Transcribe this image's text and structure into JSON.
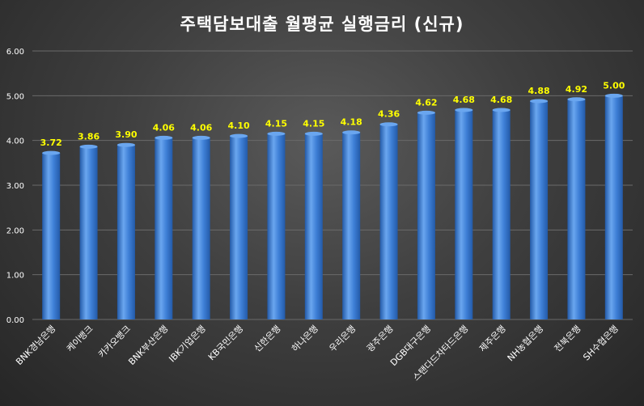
{
  "chart_data": {
    "type": "bar",
    "title": "주택담보대출 월평균 실행금리 (신규)",
    "categories": [
      "BNK경남은행",
      "케이뱅크",
      "카카오뱅크",
      "BNK부산은행",
      "IBK기업은행",
      "KB국민은행",
      "신한은행",
      "하나은행",
      "우리은행",
      "광주은행",
      "DGB대구은행",
      "스탠다드차타드은행",
      "제주은행",
      "NH농협은행",
      "전북은행",
      "SH수협은행"
    ],
    "values": [
      3.72,
      3.86,
      3.9,
      4.06,
      4.06,
      4.1,
      4.15,
      4.15,
      4.18,
      4.36,
      4.62,
      4.68,
      4.68,
      4.88,
      4.92,
      5.0
    ],
    "value_labels": [
      "3.72",
      "3.86",
      "3.90",
      "4.06",
      "4.06",
      "4.10",
      "4.15",
      "4.15",
      "4.18",
      "4.36",
      "4.62",
      "4.68",
      "4.68",
      "4.88",
      "4.92",
      "5.00"
    ],
    "ylim": [
      0,
      6
    ],
    "yticks": [
      0,
      1,
      2,
      3,
      4,
      5,
      6
    ],
    "ytick_labels": [
      "0.00",
      "1.00",
      "2.00",
      "3.00",
      "4.00",
      "5.00",
      "6.00"
    ],
    "xlabel": "",
    "ylabel": "",
    "grid": true,
    "legend": "none",
    "colors": {
      "bar": "#3e7fd6",
      "bar_light": "#6aa6ef",
      "bar_dark": "#235aa8",
      "value_label": "#ffff00",
      "tick_label": "#ffffff",
      "grid": "#6a6a6a"
    }
  }
}
